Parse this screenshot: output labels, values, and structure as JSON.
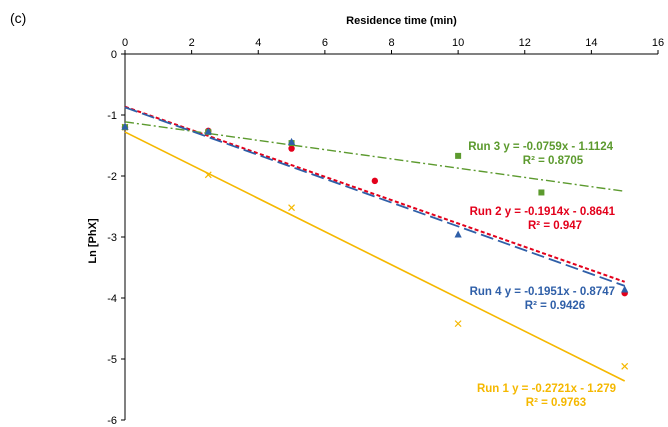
{
  "panel_label": "(c)",
  "chart_data": {
    "type": "scatter",
    "title": "",
    "xlabel": "Residence time (min)",
    "ylabel": "Ln [PhX]",
    "xlim": [
      0,
      16
    ],
    "ylim": [
      -6,
      0
    ],
    "x_ticks": [
      "0",
      "2",
      "4",
      "6",
      "8",
      "10",
      "12",
      "14",
      "16"
    ],
    "y_ticks": [
      "0",
      "-1",
      "-2",
      "-3",
      "-4",
      "-5",
      "-6"
    ],
    "x_axis_position": "top",
    "grid": false,
    "series": [
      {
        "name": "Run 1",
        "color": "#f5b800",
        "marker": "x",
        "line_style": "solid",
        "x": [
          0,
          2.5,
          5,
          10,
          15
        ],
        "y": [
          -1.2,
          -1.98,
          -2.52,
          -4.42,
          -5.12
        ],
        "fit": {
          "slope": -0.2721,
          "intercept": -1.279
        },
        "equation": "Run 1  y = -0.2721x - 1.279",
        "r2": "R² = 0.9763"
      },
      {
        "name": "Run 2",
        "color": "#e3001b",
        "marker": "circle",
        "line_style": "short-dash",
        "x": [
          0,
          2.5,
          5,
          7.5,
          15
        ],
        "y": [
          -1.2,
          -1.26,
          -1.55,
          -2.08,
          -3.92
        ],
        "fit": {
          "slope": -0.1914,
          "intercept": -0.8641
        },
        "equation": "Run 2  y = -0.1914x - 0.8641",
        "r2": "R² = 0.947"
      },
      {
        "name": "Run 3",
        "color": "#5c9a2e",
        "marker": "square",
        "line_style": "dash-dot",
        "x": [
          0,
          2.5,
          5,
          10,
          12.5
        ],
        "y": [
          -1.2,
          -1.28,
          -1.46,
          -1.67,
          -2.27
        ],
        "fit": {
          "slope": -0.0759,
          "intercept": -1.1124
        },
        "equation": "Run 3  y = -0.0759x - 1.1124",
        "r2": "R² = 0.8705"
      },
      {
        "name": "Run 4",
        "color": "#2f5fa8",
        "marker": "triangle",
        "line_style": "long-dash",
        "x": [
          0,
          2.5,
          5,
          10,
          15
        ],
        "y": [
          -1.19,
          -1.27,
          -1.44,
          -2.96,
          -3.86
        ],
        "fit": {
          "slope": -0.1951,
          "intercept": -0.8747
        },
        "equation": "Run 4  y = -0.1951x - 0.8747",
        "r2": "R² = 0.9426"
      }
    ]
  }
}
